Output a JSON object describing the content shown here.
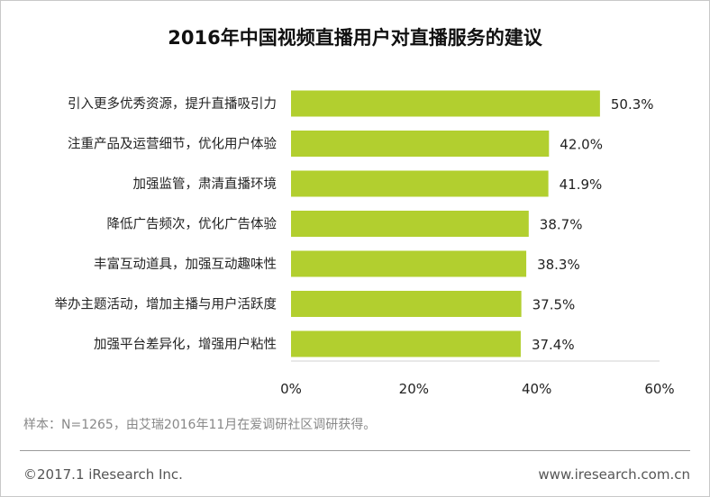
{
  "title": "2016年中国视频直播用户对直播服务的建议",
  "chart_data": {
    "type": "bar",
    "orientation": "horizontal",
    "title": "2016年中国视频直播用户对直播服务的建议",
    "categories": [
      "引入更多优秀资源，提升直播吸引力",
      "注重产品及运营细节，优化用户体验",
      "加强监管，肃清直播环境",
      "降低广告频次，优化广告体验",
      "丰富互动道具，加强互动趣味性",
      "举办主题活动，增加主播与用户活跃度",
      "加强平台差异化，增强用户粘性"
    ],
    "values": [
      50.3,
      42.0,
      41.9,
      38.7,
      38.3,
      37.5,
      37.4
    ],
    "value_labels": [
      "50.3%",
      "42.0%",
      "41.9%",
      "38.7%",
      "38.3%",
      "37.5%",
      "37.4%"
    ],
    "xlim": [
      0,
      60
    ],
    "ticks": [
      0,
      20,
      40,
      60
    ],
    "tick_labels": [
      "0%",
      "20%",
      "40%",
      "60%"
    ],
    "xlabel": "",
    "ylabel": "",
    "grid": false,
    "bar_color": "#b2cf2f"
  },
  "footer": {
    "note": "样本：N=1265，由艾瑞2016年11月在爱调研社区调研获得。",
    "copyright": "©2017.1 iResearch Inc.",
    "website": "www.iresearch.com.cn"
  }
}
